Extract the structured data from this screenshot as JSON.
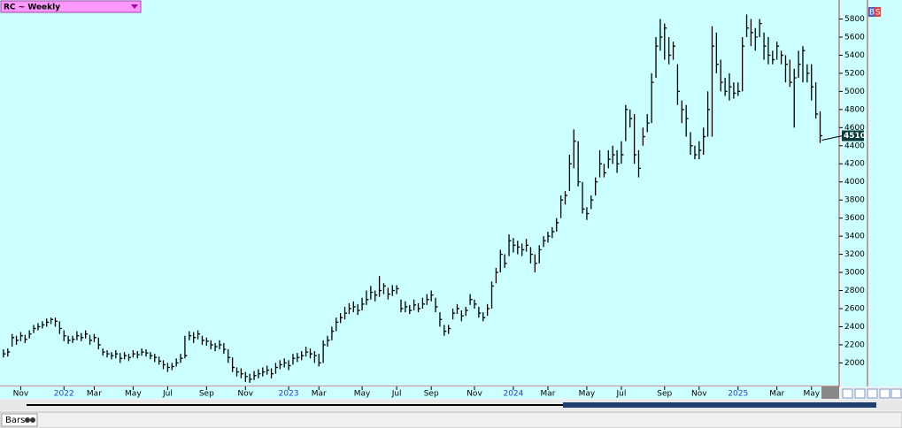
{
  "chart_data": {
    "type": "ohlc",
    "title": "RC ~ Weekly",
    "footer_tab": "Bars",
    "badges": [
      "B",
      "S"
    ],
    "xlim": [
      -0.8,
      193.4
    ],
    "ylim": [
      1740,
      6010
    ],
    "yticks": [
      2000,
      2200,
      2400,
      2600,
      2800,
      3000,
      3200,
      3400,
      3600,
      3800,
      4000,
      4200,
      4400,
      4600,
      4800,
      5000,
      5200,
      5400,
      5600,
      5800
    ],
    "xticks": [
      {
        "value": 4,
        "label": "Nov"
      },
      {
        "value": 14,
        "label": "2022"
      },
      {
        "value": 21,
        "label": "Mar"
      },
      {
        "value": 30,
        "label": "May"
      },
      {
        "value": 38,
        "label": "Jul"
      },
      {
        "value": 47,
        "label": "Sep"
      },
      {
        "value": 56,
        "label": "Nov"
      },
      {
        "value": 66,
        "label": "2023"
      },
      {
        "value": 73,
        "label": "Mar"
      },
      {
        "value": 83,
        "label": "May"
      },
      {
        "value": 91,
        "label": "Jul"
      },
      {
        "value": 99,
        "label": "Sep"
      },
      {
        "value": 109,
        "label": "Nov"
      },
      {
        "value": 118,
        "label": "2024"
      },
      {
        "value": 126,
        "label": "Mar"
      },
      {
        "value": 135,
        "label": "May"
      },
      {
        "value": 143,
        "label": "Jul"
      },
      {
        "value": 153,
        "label": "Sep"
      },
      {
        "value": 161,
        "label": "Nov"
      },
      {
        "value": 170,
        "label": "2025"
      },
      {
        "value": 179,
        "label": "Mar"
      },
      {
        "value": 187,
        "label": "May"
      }
    ],
    "color": "#000000",
    "background": "#ccffff",
    "high": [
      2150,
      2160,
      2320,
      2300,
      2340,
      2310,
      2360,
      2420,
      2440,
      2460,
      2490,
      2500,
      2500,
      2460,
      2360,
      2300,
      2300,
      2350,
      2330,
      2360,
      2310,
      2320,
      2280,
      2160,
      2140,
      2120,
      2140,
      2110,
      2120,
      2100,
      2140,
      2130,
      2160,
      2150,
      2120,
      2100,
      2070,
      2030,
      2000,
      2000,
      2050,
      2100,
      2300,
      2350,
      2340,
      2360,
      2300,
      2280,
      2250,
      2220,
      2250,
      2220,
      2150,
      2060,
      1950,
      1940,
      1900,
      1880,
      1910,
      1930,
      1950,
      1970,
      1940,
      2000,
      2030,
      2050,
      2030,
      2100,
      2110,
      2130,
      2180,
      2160,
      2130,
      2100,
      2250,
      2300,
      2400,
      2500,
      2550,
      2620,
      2660,
      2680,
      2650,
      2720,
      2800,
      2850,
      2800,
      2960,
      2880,
      2830,
      2860,
      2860,
      2700,
      2680,
      2640,
      2700,
      2660,
      2720,
      2760,
      2800,
      2720,
      2560,
      2420,
      2420,
      2600,
      2650,
      2580,
      2620,
      2760,
      2700,
      2620,
      2560,
      2650,
      2900,
      3050,
      3250,
      3200,
      3420,
      3380,
      3350,
      3320,
      3370,
      3280,
      3200,
      3300,
      3400,
      3450,
      3500,
      3600,
      3850,
      3900,
      4300,
      4580,
      4450,
      4000,
      3720,
      3850,
      4050,
      4350,
      4200,
      4350,
      4400,
      4350,
      4450,
      4850,
      4800,
      4750,
      4350,
      4600,
      4750,
      5200,
      5600,
      5800,
      5750,
      5600,
      5550,
      5300,
      4900,
      4850,
      4550,
      4400,
      4450,
      4600,
      5000,
      5720,
      5650,
      5350,
      5150,
      5200,
      5100,
      5100,
      5600,
      5850,
      5800,
      5700,
      5800,
      5650,
      5600,
      5450,
      5550,
      5450,
      5400,
      5350,
      5250,
      5450,
      5500,
      5300,
      5300,
      5100,
      4780
    ],
    "low": [
      2060,
      2070,
      2180,
      2200,
      2240,
      2220,
      2270,
      2330,
      2360,
      2380,
      2400,
      2430,
      2400,
      2320,
      2240,
      2210,
      2220,
      2250,
      2240,
      2270,
      2200,
      2230,
      2150,
      2080,
      2060,
      2040,
      2050,
      2000,
      2040,
      2020,
      2060,
      2050,
      2080,
      2070,
      2040,
      2010,
      1980,
      1930,
      1900,
      1920,
      1960,
      2000,
      2050,
      2250,
      2220,
      2260,
      2200,
      2190,
      2150,
      2130,
      2150,
      2100,
      2000,
      1900,
      1850,
      1830,
      1790,
      1780,
      1810,
      1830,
      1850,
      1870,
      1830,
      1880,
      1930,
      1950,
      1920,
      1980,
      2010,
      2030,
      2070,
      2050,
      2000,
      1960,
      2000,
      2180,
      2250,
      2350,
      2440,
      2480,
      2540,
      2560,
      2530,
      2580,
      2640,
      2700,
      2680,
      2730,
      2760,
      2700,
      2740,
      2760,
      2560,
      2560,
      2540,
      2580,
      2560,
      2600,
      2640,
      2680,
      2560,
      2400,
      2300,
      2320,
      2480,
      2540,
      2460,
      2520,
      2640,
      2600,
      2500,
      2460,
      2520,
      2600,
      2880,
      3000,
      3050,
      3180,
      3220,
      3200,
      3180,
      3230,
      3100,
      3000,
      3100,
      3280,
      3330,
      3380,
      3450,
      3600,
      3750,
      3900,
      4150,
      3950,
      3650,
      3580,
      3700,
      3850,
      4050,
      4050,
      4150,
      4200,
      4100,
      4200,
      4450,
      4600,
      4200,
      4050,
      4400,
      4550,
      4650,
      5150,
      5450,
      5350,
      5300,
      5350,
      4850,
      4650,
      4500,
      4300,
      4250,
      4250,
      4300,
      4500,
      4500,
      5200,
      5000,
      4950,
      4900,
      4920,
      4950,
      5000,
      5600,
      5500,
      5450,
      5600,
      5350,
      5300,
      5300,
      5350,
      5300,
      5100,
      5050,
      4600,
      5150,
      5100,
      5100,
      4900,
      4700,
      4430
    ],
    "close": [
      2100,
      2120,
      2280,
      2250,
      2300,
      2260,
      2320,
      2380,
      2400,
      2420,
      2450,
      2480,
      2460,
      2380,
      2300,
      2250,
      2260,
      2300,
      2280,
      2320,
      2250,
      2280,
      2200,
      2120,
      2100,
      2080,
      2100,
      2050,
      2080,
      2060,
      2100,
      2090,
      2120,
      2110,
      2080,
      2060,
      2020,
      1980,
      1950,
      1960,
      2000,
      2050,
      2080,
      2300,
      2280,
      2320,
      2250,
      2240,
      2200,
      2180,
      2200,
      2150,
      2060,
      1950,
      1900,
      1880,
      1850,
      1820,
      1860,
      1880,
      1900,
      1920,
      1880,
      1950,
      1980,
      2000,
      1970,
      2050,
      2060,
      2080,
      2120,
      2100,
      2080,
      2000,
      2200,
      2250,
      2350,
      2450,
      2500,
      2550,
      2600,
      2620,
      2580,
      2650,
      2700,
      2780,
      2750,
      2800,
      2850,
      2760,
      2800,
      2820,
      2600,
      2620,
      2580,
      2640,
      2600,
      2650,
      2700,
      2750,
      2620,
      2480,
      2350,
      2380,
      2550,
      2600,
      2520,
      2580,
      2700,
      2650,
      2550,
      2500,
      2600,
      2850,
      3000,
      3200,
      3100,
      3350,
      3300,
      3280,
      3250,
      3300,
      3200,
      3100,
      3250,
      3350,
      3400,
      3450,
      3550,
      3800,
      3850,
      4200,
      4450,
      4000,
      3700,
      3650,
      3800,
      4000,
      4200,
      4100,
      4250,
      4300,
      4200,
      4300,
      4800,
      4700,
      4300,
      4150,
      4500,
      4650,
      5100,
      5500,
      5600,
      5700,
      5400,
      5500,
      5000,
      4800,
      4700,
      4400,
      4300,
      4350,
      4500,
      4800,
      5500,
      5300,
      5100,
      5000,
      5050,
      4980,
      5000,
      5500,
      5700,
      5650,
      5600,
      5750,
      5500,
      5400,
      5350,
      5500,
      5400,
      5300,
      5100,
      5150,
      5300,
      5450,
      5200,
      5050,
      4750,
      4510
    ]
  }
}
